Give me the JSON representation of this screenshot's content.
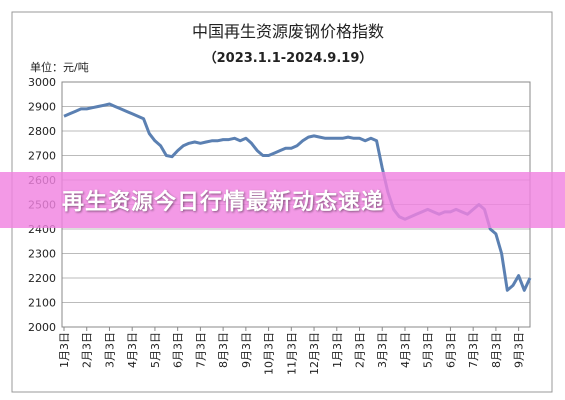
{
  "chart_data": {
    "type": "line",
    "title": "中国再生资源废钢价格指数",
    "subtitle": "（2023.1.1-2024.9.19）",
    "y_label": "单位：元/吨",
    "categories": [
      "1月3日",
      null,
      null,
      null,
      "2月3日",
      null,
      null,
      null,
      "3月3日",
      null,
      null,
      null,
      "4月3日",
      null,
      null,
      null,
      "5月3日",
      null,
      null,
      null,
      "6月3日",
      null,
      null,
      null,
      "7月3日",
      null,
      null,
      null,
      "8月3日",
      null,
      null,
      null,
      "9月3日",
      null,
      null,
      null,
      "10月3日",
      null,
      null,
      null,
      "11月3日",
      null,
      null,
      null,
      "12月3日",
      null,
      null,
      null,
      "1月3日",
      null,
      null,
      null,
      "2月3日",
      null,
      null,
      null,
      "3月3日",
      null,
      null,
      null,
      "4月3日",
      null,
      null,
      null,
      "5月3日",
      null,
      null,
      null,
      "6月3日",
      null,
      null,
      null,
      "7月3日",
      null,
      null,
      null,
      "8月3日",
      null,
      null,
      null,
      "9月3日",
      null,
      null
    ],
    "values": [
      2860,
      2870,
      2880,
      2890,
      2890,
      2895,
      2900,
      2905,
      2910,
      2900,
      2890,
      2880,
      2870,
      2860,
      2850,
      2790,
      2760,
      2740,
      2700,
      2695,
      2720,
      2740,
      2750,
      2755,
      2750,
      2755,
      2760,
      2760,
      2765,
      2765,
      2770,
      2760,
      2770,
      2750,
      2720,
      2700,
      2700,
      2710,
      2720,
      2730,
      2730,
      2740,
      2760,
      2775,
      2780,
      2775,
      2770,
      2770,
      2770,
      2770,
      2775,
      2770,
      2770,
      2760,
      2770,
      2760,
      2650,
      2550,
      2480,
      2450,
      2440,
      2450,
      2460,
      2470,
      2480,
      2470,
      2460,
      2470,
      2470,
      2480,
      2470,
      2460,
      2480,
      2500,
      2480,
      2400,
      2380,
      2300,
      2150,
      2170,
      2210,
      2150,
      2200
    ],
    "color": "#5b80b2",
    "ylim": [
      2000,
      3000
    ],
    "yticks": [
      2000,
      2100,
      2200,
      2300,
      2400,
      2500,
      2600,
      2700,
      2800,
      2900,
      3000
    ],
    "grid": true
  },
  "banner": {
    "text": "再生资源今日行情最新动态速递"
  }
}
